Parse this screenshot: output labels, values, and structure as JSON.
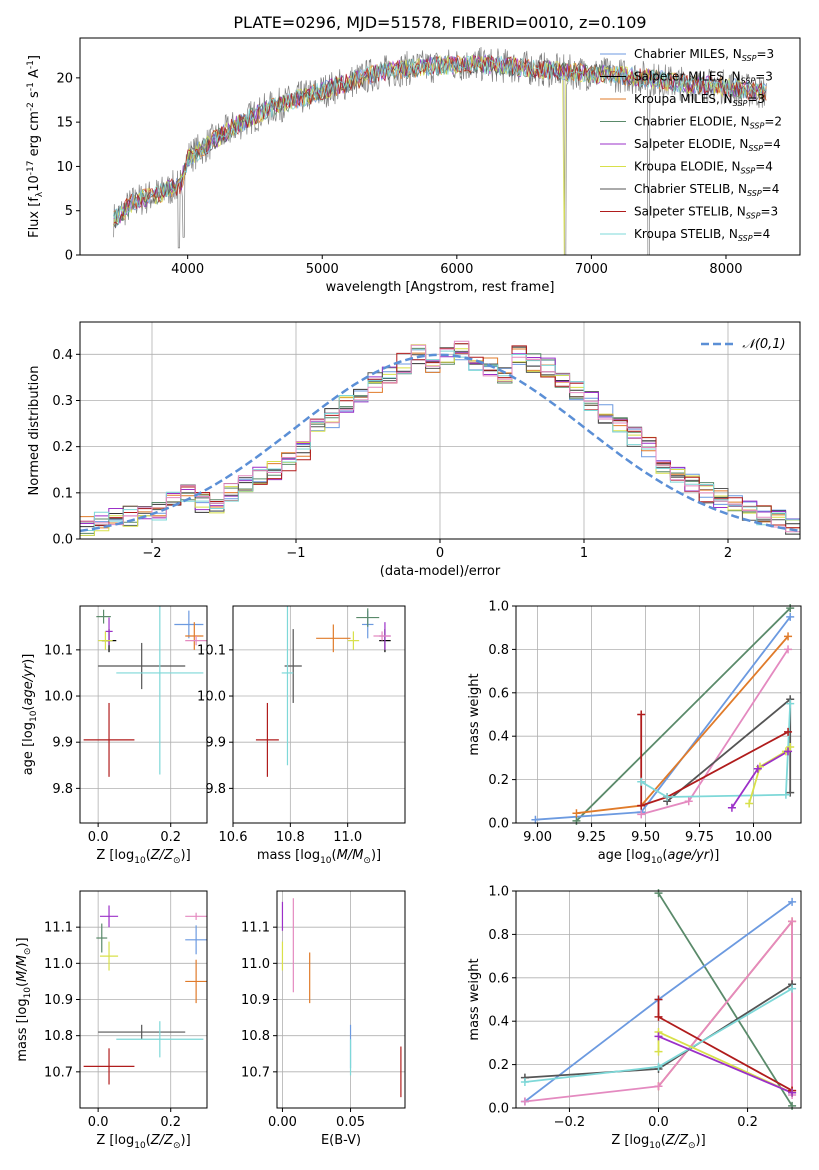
{
  "figure_title": "PLATE=0296, MJD=51578, FIBERID=0010, z=0.109",
  "colors": {
    "Chabrier MILES": "#6c9ae0",
    "Salpeter MILES": "#000000",
    "Kroupa MILES": "#e07b2a",
    "Chabrier ELODIE": "#5a8a6a",
    "Salpeter ELODIE": "#9b30c8",
    "Kroupa ELODIE": "#d8e04a",
    "Chabrier STELIB": "#555555",
    "Salpeter STELIB": "#b01c1c",
    "Kroupa STELIB": "#7ed8d8",
    "extra_pink": "#e48ac0",
    "gauss": "#5b8fd6"
  },
  "chart_data": [
    {
      "id": "spectrum",
      "type": "line",
      "xlabel": "wavelength [Angstrom, rest frame]",
      "ylabel": "Flux [f$_\\lambda$10$^{-17}$ erg cm$^{-2}$ s$^{-1}$ A$^{-1}$]",
      "xlim": [
        3200,
        8550
      ],
      "ylim": [
        0,
        24.5
      ],
      "xticks": [
        4000,
        5000,
        6000,
        7000,
        8000
      ],
      "yticks": [
        0,
        5,
        10,
        15,
        20
      ],
      "grid": false,
      "legend_position": "right",
      "legend": [
        {
          "name": "Chabrier MILES, N",
          "sub": "SSP",
          "suffix": "=3"
        },
        {
          "name": "Salpeter MILES, N",
          "sub": "SSP",
          "suffix": "=3"
        },
        {
          "name": "Kroupa MILES, N",
          "sub": "SSP",
          "suffix": "=3"
        },
        {
          "name": "Chabrier ELODIE, N",
          "sub": "SSP",
          "suffix": "=2"
        },
        {
          "name": "Salpeter ELODIE, N",
          "sub": "SSP",
          "suffix": "=4"
        },
        {
          "name": "Kroupa ELODIE, N",
          "sub": "SSP",
          "suffix": "=4"
        },
        {
          "name": "Chabrier STELIB, N",
          "sub": "SSP",
          "suffix": "=4"
        },
        {
          "name": "Salpeter STELIB, N",
          "sub": "SSP",
          "suffix": "=3"
        },
        {
          "name": "Kroupa STELIB, N",
          "sub": "SSP",
          "suffix": "=4"
        }
      ],
      "continuum": {
        "x": [
          3450,
          3600,
          3800,
          3950,
          4000,
          4200,
          4400,
          4600,
          4800,
          5000,
          5200,
          5400,
          5600,
          5800,
          6000,
          6200,
          6400,
          6600,
          6800,
          7000,
          7200,
          7400,
          7600,
          7800,
          8000,
          8200,
          8300
        ],
        "y": [
          4.0,
          6.0,
          7.0,
          8.0,
          11.0,
          13.0,
          15.0,
          16.5,
          17.5,
          18.5,
          19.5,
          20.5,
          21.0,
          21.3,
          21.5,
          21.5,
          21.3,
          21.0,
          20.7,
          20.5,
          20.3,
          20.0,
          19.5,
          19.2,
          19.0,
          18.5,
          18.3
        ]
      },
      "absorption_dips": [
        {
          "x": 3935,
          "y": 0.8
        },
        {
          "x": 6805,
          "y": 0.0
        },
        {
          "x": 7425,
          "y": 0.0
        },
        {
          "x": 4305,
          "y": 9.0
        }
      ]
    },
    {
      "id": "residual_hist",
      "type": "bar",
      "xlabel": "(data-model)/error",
      "ylabel": "Normed distribution",
      "xlim": [
        -2.5,
        2.5
      ],
      "ylim": [
        0,
        0.47
      ],
      "xticks": [
        -2,
        -1,
        0,
        1,
        2
      ],
      "yticks": [
        0.0,
        0.1,
        0.2,
        0.3,
        0.4
      ],
      "grid": true,
      "legend_position": "top-right",
      "gauss_label": "$\\mathcal{N}(0,1)$",
      "bin_width": 0.1,
      "bin_start": -2.5,
      "base_values": [
        0.03,
        0.04,
        0.05,
        0.05,
        0.05,
        0.06,
        0.08,
        0.1,
        0.08,
        0.07,
        0.1,
        0.12,
        0.14,
        0.15,
        0.17,
        0.19,
        0.24,
        0.26,
        0.29,
        0.31,
        0.34,
        0.36,
        0.38,
        0.4,
        0.37,
        0.4,
        0.41,
        0.38,
        0.37,
        0.36,
        0.4,
        0.38,
        0.37,
        0.34,
        0.32,
        0.3,
        0.27,
        0.24,
        0.22,
        0.2,
        0.16,
        0.14,
        0.12,
        0.1,
        0.09,
        0.08,
        0.06,
        0.05,
        0.04,
        0.03
      ],
      "gauss_x_range": [
        -2.5,
        2.5
      ]
    },
    {
      "id": "age_vs_Z",
      "type": "scatter",
      "xlabel": "Z [log$_{10}$($Z/Z_\\odot$)]",
      "ylabel": "age  [log$_{10}$($age/yr$)]",
      "xlim": [
        -0.05,
        0.3
      ],
      "ylim": [
        9.725,
        10.195
      ],
      "xticks": [
        0.0,
        0.2
      ],
      "yticks": [
        9.8,
        9.9,
        10.0,
        10.1
      ],
      "grid": true,
      "points": [
        {
          "c": "Chabrier MILES",
          "x": 0.25,
          "y": 10.155,
          "ex": 0.04,
          "ey": 0.03
        },
        {
          "c": "Salpeter MILES",
          "x": 0.03,
          "y": 10.12,
          "ex": 0.02,
          "ey": 0.025
        },
        {
          "c": "Kroupa MILES",
          "x": 0.265,
          "y": 10.13,
          "ex": 0.025,
          "ey": 0.03
        },
        {
          "c": "Chabrier ELODIE",
          "x": 0.015,
          "y": 10.172,
          "ex": 0.02,
          "ey": 0.015
        },
        {
          "c": "Salpeter ELODIE",
          "x": 0.03,
          "y": 10.14,
          "ex": 0.01,
          "ey": 0.03
        },
        {
          "c": "Kroupa ELODIE",
          "x": 0.02,
          "y": 10.12,
          "ex": 0.02,
          "ey": 0.02
        },
        {
          "c": "Chabrier STELIB",
          "x": 0.12,
          "y": 10.065,
          "ex": 0.12,
          "ey": 0.05
        },
        {
          "c": "Salpeter STELIB",
          "x": 0.03,
          "y": 9.905,
          "ex": 0.07,
          "ey": 0.08
        },
        {
          "c": "Kroupa STELIB",
          "x": 0.17,
          "y": 10.05,
          "ex": 0.12,
          "ey": 0.22
        },
        {
          "c": "extra_pink",
          "x": 0.27,
          "y": 10.12,
          "ex": 0.03,
          "ey": 0.01
        }
      ]
    },
    {
      "id": "age_vs_mass",
      "type": "scatter",
      "xlabel": "mass [log$_{10}$($M/M_\\odot$)]",
      "ylabel": "",
      "xlim": [
        10.6,
        11.2
      ],
      "ylim": [
        9.725,
        10.195
      ],
      "xticks": [
        10.6,
        10.8,
        11.0
      ],
      "yticks": [
        9.8,
        9.9,
        10.0,
        10.1
      ],
      "grid": true,
      "points": [
        {
          "c": "Chabrier MILES",
          "x": 11.07,
          "y": 10.155,
          "ex": 0.02,
          "ey": 0.03
        },
        {
          "c": "Salpeter MILES",
          "x": 11.13,
          "y": 10.12,
          "ex": 0.02,
          "ey": 0.025
        },
        {
          "c": "Kroupa MILES",
          "x": 10.95,
          "y": 10.125,
          "ex": 0.06,
          "ey": 0.03
        },
        {
          "c": "Chabrier ELODIE",
          "x": 11.07,
          "y": 10.17,
          "ex": 0.04,
          "ey": 0.02
        },
        {
          "c": "Salpeter ELODIE",
          "x": 11.13,
          "y": 10.13,
          "ex": 0.02,
          "ey": 0.03
        },
        {
          "c": "Kroupa ELODIE",
          "x": 11.02,
          "y": 10.12,
          "ex": 0.02,
          "ey": 0.02
        },
        {
          "c": "Chabrier STELIB",
          "x": 10.81,
          "y": 10.065,
          "ex": 0.03,
          "ey": 0.08
        },
        {
          "c": "Salpeter STELIB",
          "x": 10.72,
          "y": 9.905,
          "ex": 0.04,
          "ey": 0.08
        },
        {
          "c": "Kroupa STELIB",
          "x": 10.79,
          "y": 10.05,
          "ex": 0.02,
          "ey": 0.2
        },
        {
          "c": "extra_pink",
          "x": 11.12,
          "y": 10.13,
          "ex": 0.03,
          "ey": 0.01
        }
      ]
    },
    {
      "id": "massweight_vs_age",
      "type": "line",
      "xlabel": "age  [log$_{10}$($age/yr$)]",
      "ylabel": "mass weight",
      "xlim": [
        8.9,
        10.22
      ],
      "ylim": [
        0,
        1.0
      ],
      "xticks": [
        9.0,
        9.25,
        9.5,
        9.75,
        10.0
      ],
      "yticks": [
        0.0,
        0.2,
        0.4,
        0.6,
        0.8,
        1.0
      ],
      "grid": true,
      "series": [
        {
          "c": "Chabrier ELODIE",
          "x": [
            9.18,
            10.17
          ],
          "y": [
            0.01,
            0.99
          ]
        },
        {
          "c": "Chabrier MILES",
          "x": [
            8.99,
            9.48,
            10.17
          ],
          "y": [
            0.015,
            0.05,
            0.95
          ]
        },
        {
          "c": "Kroupa MILES",
          "x": [
            9.18,
            9.48,
            10.16
          ],
          "y": [
            0.045,
            0.08,
            0.86
          ]
        },
        {
          "c": "extra_pink",
          "x": [
            9.48,
            9.7,
            10.16
          ],
          "y": [
            0.04,
            0.1,
            0.8
          ]
        },
        {
          "c": "Chabrier STELIB",
          "x": [
            9.6,
            10.17,
            10.17
          ],
          "y": [
            0.1,
            0.57,
            0.14
          ]
        },
        {
          "c": "Salpeter STELIB",
          "x": [
            9.48,
            9.48,
            9.6,
            10.16
          ],
          "y": [
            0.5,
            0.08,
            0.12,
            0.42
          ]
        },
        {
          "c": "Kroupa STELIB",
          "x": [
            9.48,
            9.6,
            10.15,
            10.17
          ],
          "y": [
            0.19,
            0.12,
            0.13,
            0.55
          ]
        },
        {
          "c": "Kroupa ELODIE",
          "x": [
            9.98,
            10.03,
            10.15,
            10.17
          ],
          "y": [
            0.09,
            0.26,
            0.33,
            0.35
          ]
        },
        {
          "c": "Salpeter ELODIE",
          "x": [
            9.9,
            10.02,
            10.16
          ],
          "y": [
            0.07,
            0.25,
            0.33
          ]
        }
      ]
    },
    {
      "id": "mass_vs_Z",
      "type": "scatter",
      "xlabel": "Z [log$_{10}$($Z/Z_\\odot$)]",
      "ylabel": "mass [log$_{10}$($M/M_\\odot$)]",
      "xlim": [
        -0.05,
        0.3
      ],
      "ylim": [
        10.6,
        11.2
      ],
      "xticks": [
        0.0,
        0.2
      ],
      "yticks": [
        10.7,
        10.8,
        10.9,
        11.0,
        11.1
      ],
      "grid": true,
      "points": [
        {
          "c": "Chabrier MILES",
          "x": 0.27,
          "y": 11.065,
          "ex": 0.03,
          "ey": 0.04
        },
        {
          "c": "Kroupa MILES",
          "x": 0.27,
          "y": 10.95,
          "ex": 0.03,
          "ey": 0.06
        },
        {
          "c": "Chabrier ELODIE",
          "x": 0.01,
          "y": 11.07,
          "ex": 0.015,
          "ey": 0.04
        },
        {
          "c": "Salpeter ELODIE",
          "x": 0.03,
          "y": 11.13,
          "ex": 0.025,
          "ey": 0.03
        },
        {
          "c": "Kroupa ELODIE",
          "x": 0.03,
          "y": 11.02,
          "ex": 0.025,
          "ey": 0.04
        },
        {
          "c": "Chabrier STELIB",
          "x": 0.12,
          "y": 10.81,
          "ex": 0.12,
          "ey": 0.02
        },
        {
          "c": "Salpeter STELIB",
          "x": 0.03,
          "y": 10.715,
          "ex": 0.07,
          "ey": 0.05
        },
        {
          "c": "Kroupa STELIB",
          "x": 0.17,
          "y": 10.79,
          "ex": 0.12,
          "ey": 0.05
        },
        {
          "c": "extra_pink",
          "x": 0.27,
          "y": 11.13,
          "ex": 0.03,
          "ey": 0.01
        }
      ]
    },
    {
      "id": "mass_vs_ebv",
      "type": "scatter",
      "xlabel": "E(B-V)",
      "ylabel": "",
      "xlim": [
        -0.004,
        0.09
      ],
      "ylim": [
        10.6,
        11.2
      ],
      "xticks": [
        0.0,
        0.05
      ],
      "yticks": [
        10.7,
        10.8,
        10.9,
        11.0,
        11.1
      ],
      "grid": true,
      "points": [
        {
          "c": "Salpeter ELODIE",
          "x": 0.0,
          "y": 11.13,
          "ex": 0.0,
          "ey": 0.04
        },
        {
          "c": "Kroupa ELODIE",
          "x": 0.0,
          "y": 11.02,
          "ex": 0.0,
          "ey": 0.04
        },
        {
          "c": "extra_pink",
          "x": 0.008,
          "y": 11.05,
          "ex": 0.0,
          "ey": 0.13
        },
        {
          "c": "Kroupa MILES",
          "x": 0.02,
          "y": 10.96,
          "ex": 0.0,
          "ey": 0.07
        },
        {
          "c": "Chabrier MILES",
          "x": 0.05,
          "y": 10.77,
          "ex": 0.0,
          "ey": 0.06
        },
        {
          "c": "Kroupa STELIB",
          "x": 0.05,
          "y": 10.74,
          "ex": 0.0,
          "ey": 0.05
        },
        {
          "c": "Salpeter STELIB",
          "x": 0.087,
          "y": 10.7,
          "ex": 0.0,
          "ey": 0.07
        }
      ]
    },
    {
      "id": "massweight_vs_Z",
      "type": "line",
      "xlabel": "Z [log$_{10}$($Z/Z_\\odot$)]",
      "ylabel": "mass weight",
      "xlim": [
        -0.32,
        0.32
      ],
      "ylim": [
        0,
        1.0
      ],
      "xticks": [
        -0.2,
        0.0,
        0.2
      ],
      "yticks": [
        0.0,
        0.2,
        0.4,
        0.6,
        0.8,
        1.0
      ],
      "grid": true,
      "series": [
        {
          "c": "Chabrier ELODIE",
          "x": [
            0.0,
            0.3
          ],
          "y": [
            0.99,
            0.01
          ]
        },
        {
          "c": "Chabrier MILES",
          "x": [
            -0.3,
            0.0,
            0.3
          ],
          "y": [
            0.03,
            0.5,
            0.95
          ]
        },
        {
          "c": "Kroupa MILES",
          "x": [
            0.0,
            0.3,
            0.3
          ],
          "y": [
            0.1,
            0.86,
            0.08
          ]
        },
        {
          "c": "extra_pink",
          "x": [
            -0.3,
            0.0,
            0.3,
            0.3
          ],
          "y": [
            0.03,
            0.1,
            0.86,
            0.06
          ]
        },
        {
          "c": "Chabrier STELIB",
          "x": [
            -0.3,
            0.0,
            0.3
          ],
          "y": [
            0.14,
            0.18,
            0.57
          ]
        },
        {
          "c": "Salpeter STELIB",
          "x": [
            0.0,
            0.0,
            0.3
          ],
          "y": [
            0.5,
            0.42,
            0.08
          ]
        },
        {
          "c": "Kroupa STELIB",
          "x": [
            -0.3,
            0.0,
            0.3
          ],
          "y": [
            0.12,
            0.19,
            0.55
          ]
        },
        {
          "c": "Kroupa ELODIE",
          "x": [
            0.0,
            0.0,
            0.3
          ],
          "y": [
            0.26,
            0.35,
            0.07
          ]
        },
        {
          "c": "Salpeter ELODIE",
          "x": [
            0.0,
            0.3
          ],
          "y": [
            0.33,
            0.07
          ]
        }
      ]
    }
  ]
}
